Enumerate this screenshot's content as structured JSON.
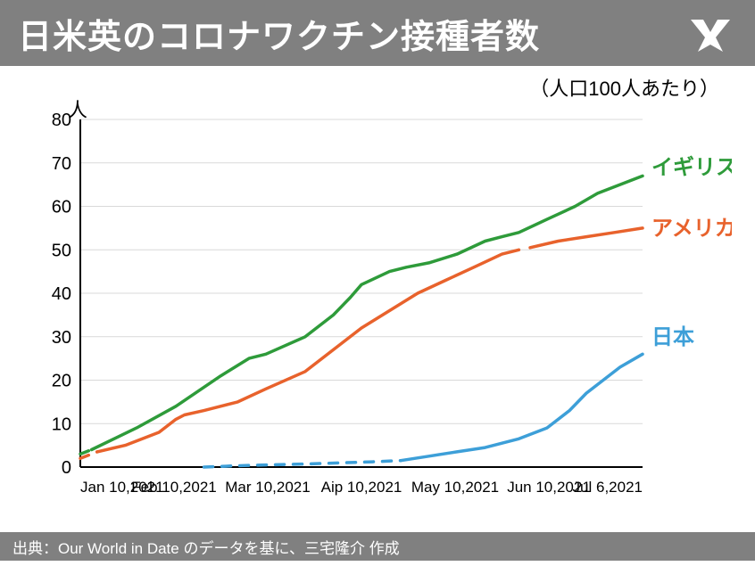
{
  "header": {
    "title": "日米英のコロナワクチン接種者数"
  },
  "subtitle": "（人口100人あたり）",
  "ylabel": "人",
  "footer": "出典：Our World in Date のデータを基に、三宅隆介 作成",
  "chart": {
    "type": "line",
    "background_color": "#ffffff",
    "grid_color": "#d9d9d9",
    "axis_color": "#000000",
    "ylim": [
      0,
      80
    ],
    "ytick_step": 10,
    "x_ticks": [
      "Jan 10,2021",
      "Feb 10,2021",
      "Mar 10,2021",
      "Aip 10,2021",
      "May 10,2021",
      "Jun 10,2021",
      "Jul 6,2021"
    ],
    "line_width": 3.5,
    "series": [
      {
        "name": "uk",
        "label": "イギリス",
        "color": "#2e9b3a",
        "label_color": "#2e9b3a",
        "dashed_segments": [
          [
            0,
            0.02
          ]
        ],
        "points": [
          [
            0.0,
            3
          ],
          [
            0.02,
            4
          ],
          [
            0.1,
            9
          ],
          [
            0.17,
            14
          ],
          [
            0.25,
            21
          ],
          [
            0.3,
            25
          ],
          [
            0.33,
            26
          ],
          [
            0.4,
            30
          ],
          [
            0.45,
            35
          ],
          [
            0.48,
            39
          ],
          [
            0.5,
            42
          ],
          [
            0.55,
            45
          ],
          [
            0.58,
            46
          ],
          [
            0.62,
            47
          ],
          [
            0.67,
            49
          ],
          [
            0.72,
            52
          ],
          [
            0.75,
            53
          ],
          [
            0.78,
            54
          ],
          [
            0.83,
            57
          ],
          [
            0.88,
            60
          ],
          [
            0.92,
            63
          ],
          [
            0.96,
            65
          ],
          [
            1.0,
            67
          ]
        ]
      },
      {
        "name": "usa",
        "label": "アメリカ",
        "color": "#e8622c",
        "label_color": "#e8622c",
        "dashed_segments": [
          [
            0,
            0.03
          ]
        ],
        "solid_break": [
          0.78,
          0.8
        ],
        "points": [
          [
            0.0,
            2
          ],
          [
            0.03,
            3.5
          ],
          [
            0.08,
            5
          ],
          [
            0.14,
            8
          ],
          [
            0.17,
            11
          ],
          [
            0.185,
            12
          ],
          [
            0.22,
            13
          ],
          [
            0.28,
            15
          ],
          [
            0.33,
            18
          ],
          [
            0.4,
            22
          ],
          [
            0.45,
            27
          ],
          [
            0.5,
            32
          ],
          [
            0.55,
            36
          ],
          [
            0.6,
            40
          ],
          [
            0.65,
            43
          ],
          [
            0.7,
            46
          ],
          [
            0.75,
            49
          ],
          [
            0.78,
            50
          ],
          [
            0.8,
            50.5
          ],
          [
            0.85,
            52
          ],
          [
            0.9,
            53
          ],
          [
            0.95,
            54
          ],
          [
            1.0,
            55
          ]
        ]
      },
      {
        "name": "japan",
        "label": "日本",
        "color": "#3d9fd8",
        "label_color": "#3d9fd8",
        "dashed_segments": [
          [
            0.22,
            0.57
          ]
        ],
        "points": [
          [
            0.22,
            0
          ],
          [
            0.28,
            0.3
          ],
          [
            0.33,
            0.5
          ],
          [
            0.4,
            0.7
          ],
          [
            0.47,
            1
          ],
          [
            0.52,
            1.2
          ],
          [
            0.57,
            1.5
          ],
          [
            0.62,
            2.5
          ],
          [
            0.67,
            3.5
          ],
          [
            0.72,
            4.5
          ],
          [
            0.75,
            5.5
          ],
          [
            0.78,
            6.5
          ],
          [
            0.83,
            9
          ],
          [
            0.87,
            13
          ],
          [
            0.9,
            17
          ],
          [
            0.93,
            20
          ],
          [
            0.96,
            23
          ],
          [
            1.0,
            26
          ]
        ]
      }
    ],
    "series_label_positions": {
      "uk": {
        "x": 1.02,
        "y": 69
      },
      "usa": {
        "x": 1.02,
        "y": 55
      },
      "japan": {
        "x": 1.02,
        "y": 30
      }
    }
  }
}
